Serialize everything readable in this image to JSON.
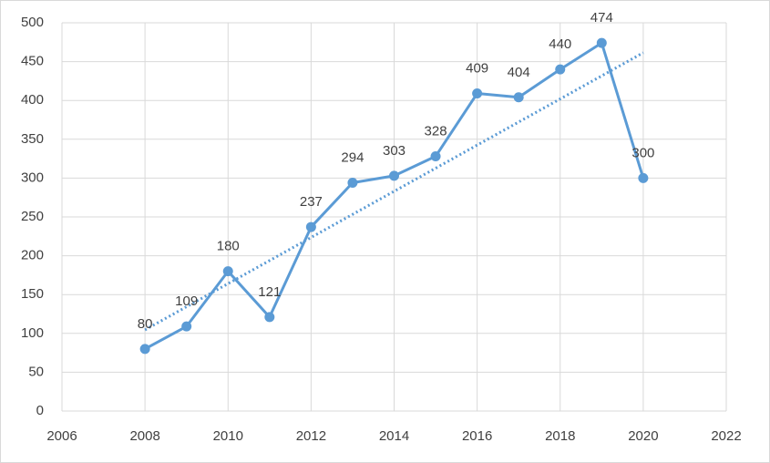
{
  "chart_data": {
    "type": "line",
    "x": [
      2008,
      2009,
      2010,
      2011,
      2012,
      2013,
      2014,
      2015,
      2016,
      2017,
      2018,
      2019,
      2020
    ],
    "series": [
      {
        "color": "#5b9bd5",
        "values": [
          80,
          109,
          180,
          121,
          237,
          294,
          303,
          328,
          409,
          404,
          440,
          474,
          300
        ]
      }
    ],
    "trendline": "linear",
    "xlim": [
      2006,
      2022
    ],
    "xticks": [
      2006,
      2008,
      2010,
      2012,
      2014,
      2016,
      2018,
      2020,
      2022
    ],
    "ylim": [
      0,
      500
    ],
    "yticks": [
      0,
      50,
      100,
      150,
      200,
      250,
      300,
      350,
      400,
      450,
      500
    ],
    "grid": true,
    "data_labels": true
  }
}
